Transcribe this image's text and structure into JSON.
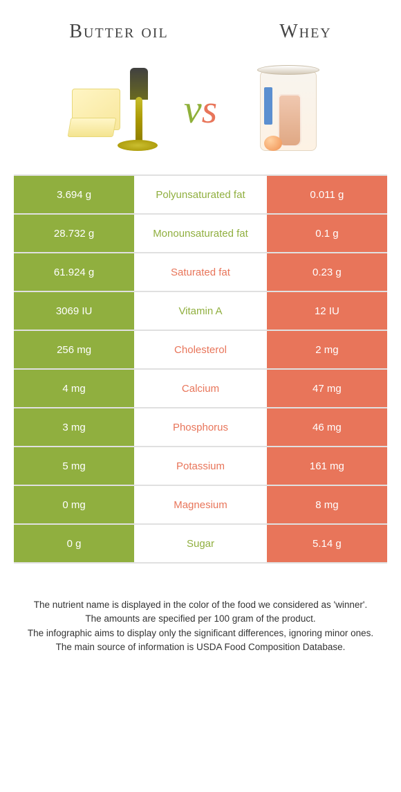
{
  "left_title": "Butter oil",
  "right_title": "Whey",
  "colors": {
    "left": "#90af3f",
    "right": "#e8755a",
    "row_border": "#e0e0e0"
  },
  "rows": [
    {
      "left": "3.694 g",
      "label": "Polyunsaturated fat",
      "right": "0.011 g",
      "winner": "left"
    },
    {
      "left": "28.732 g",
      "label": "Monounsaturated fat",
      "right": "0.1 g",
      "winner": "left"
    },
    {
      "left": "61.924 g",
      "label": "Saturated fat",
      "right": "0.23 g",
      "winner": "right"
    },
    {
      "left": "3069 IU",
      "label": "Vitamin A",
      "right": "12 IU",
      "winner": "left"
    },
    {
      "left": "256 mg",
      "label": "Cholesterol",
      "right": "2 mg",
      "winner": "right"
    },
    {
      "left": "4 mg",
      "label": "Calcium",
      "right": "47 mg",
      "winner": "right"
    },
    {
      "left": "3 mg",
      "label": "Phosphorus",
      "right": "46 mg",
      "winner": "right"
    },
    {
      "left": "5 mg",
      "label": "Potassium",
      "right": "161 mg",
      "winner": "right"
    },
    {
      "left": "0 mg",
      "label": "Magnesium",
      "right": "8 mg",
      "winner": "right"
    },
    {
      "left": "0 g",
      "label": "Sugar",
      "right": "5.14 g",
      "winner": "left"
    }
  ],
  "footer_lines": [
    "The nutrient name is displayed in the color of the food we considered as 'winner'.",
    "The amounts are specified per 100 gram of the product.",
    "The infographic aims to display only the significant differences, ignoring minor ones.",
    "The main source of information is USDA Food Composition Database."
  ]
}
